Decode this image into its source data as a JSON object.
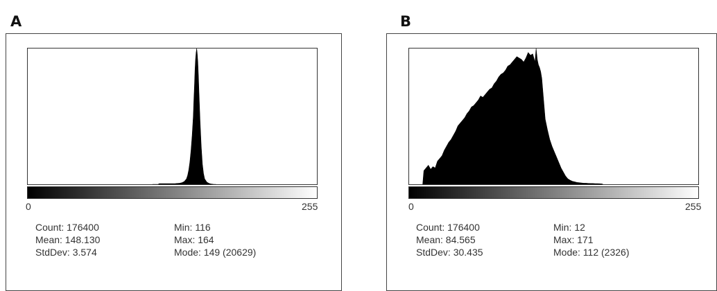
{
  "chart_data": [
    {
      "type": "area",
      "panel_label": "A",
      "title": "",
      "xlabel": "",
      "ylabel": "",
      "xlim": [
        0,
        255
      ],
      "tick_labels": [
        "0",
        "255"
      ],
      "x": [
        110,
        112,
        113,
        114,
        115,
        116,
        118,
        120,
        122,
        124,
        126,
        128,
        130,
        132,
        134,
        136,
        138,
        140,
        141,
        142,
        143,
        144,
        145,
        146,
        146.5,
        147,
        147.5,
        148,
        148.5,
        149,
        149.5,
        150,
        150.5,
        151,
        152,
        153,
        154,
        155,
        156,
        158,
        160,
        162,
        164,
        166
      ],
      "values": [
        0,
        0,
        0,
        0,
        0,
        0.5,
        0.5,
        0.5,
        0.5,
        0.5,
        0.5,
        0.5,
        0.5,
        0.7,
        0.8,
        1.2,
        2.0,
        4.0,
        6.5,
        10.5,
        16.5,
        25.0,
        36.0,
        50.0,
        62.0,
        72.0,
        84.0,
        92.0,
        97.0,
        100.0,
        96.0,
        90.0,
        80.0,
        68.0,
        46.0,
        28.0,
        15.0,
        8.0,
        4.0,
        1.5,
        0.6,
        0.2,
        0.0,
        0.0
      ],
      "stats": {
        "count": "Count: 176400",
        "mean": "Mean: 148.130",
        "stddev": "StdDev: 3.574",
        "min": "Min: 116",
        "max": "Max: 164",
        "mode": "Mode: 149 (20629)"
      }
    },
    {
      "type": "area",
      "panel_label": "B",
      "title": "",
      "xlabel": "",
      "ylabel": "",
      "xlim": [
        0,
        255
      ],
      "tick_labels": [
        "0",
        "255"
      ],
      "x": [
        12,
        13,
        15,
        17,
        19,
        21,
        23,
        25,
        27,
        29,
        31,
        33,
        35,
        37,
        39,
        41,
        43,
        45,
        47,
        49,
        51,
        53,
        55,
        57,
        59,
        61,
        63,
        65,
        67,
        69,
        71,
        73,
        75,
        77,
        79,
        81,
        83,
        85,
        87,
        89,
        91,
        93,
        95,
        97,
        99,
        101,
        103,
        105,
        107,
        109,
        110,
        111,
        112,
        113,
        114,
        115,
        116,
        117,
        118,
        119,
        120,
        122,
        124,
        126,
        128,
        130,
        132,
        134,
        136,
        138,
        140,
        142,
        144,
        146,
        148,
        150,
        152,
        154,
        156,
        158,
        160,
        162,
        164,
        166,
        168,
        170,
        171
      ],
      "values": [
        0,
        10,
        12,
        14,
        11,
        13,
        12,
        17,
        19,
        21,
        25,
        28,
        31,
        33,
        36,
        39,
        43,
        45,
        47,
        49,
        52,
        54,
        57,
        58,
        60,
        62,
        65,
        64,
        66,
        68,
        70,
        71,
        74,
        76,
        79,
        81,
        82,
        84,
        87,
        88,
        90,
        92,
        94,
        93,
        92,
        90,
        93,
        97,
        95,
        96,
        93,
        90,
        100,
        92,
        88,
        86,
        83,
        78,
        68,
        58,
        48,
        40,
        33,
        28,
        24,
        20,
        16,
        12,
        9,
        6,
        4,
        3,
        2.2,
        1.8,
        1.4,
        1.2,
        1.0,
        0.8,
        0.8,
        0.7,
        0.6,
        0.6,
        0.5,
        0.5,
        0.4,
        0.3,
        0
      ],
      "stats": {
        "count": "Count: 176400",
        "mean": "Mean: 84.565",
        "stddev": "StdDev: 30.435",
        "min": "Min: 12",
        "max": "Max: 171",
        "mode": "Mode: 112 (2326)"
      }
    }
  ]
}
